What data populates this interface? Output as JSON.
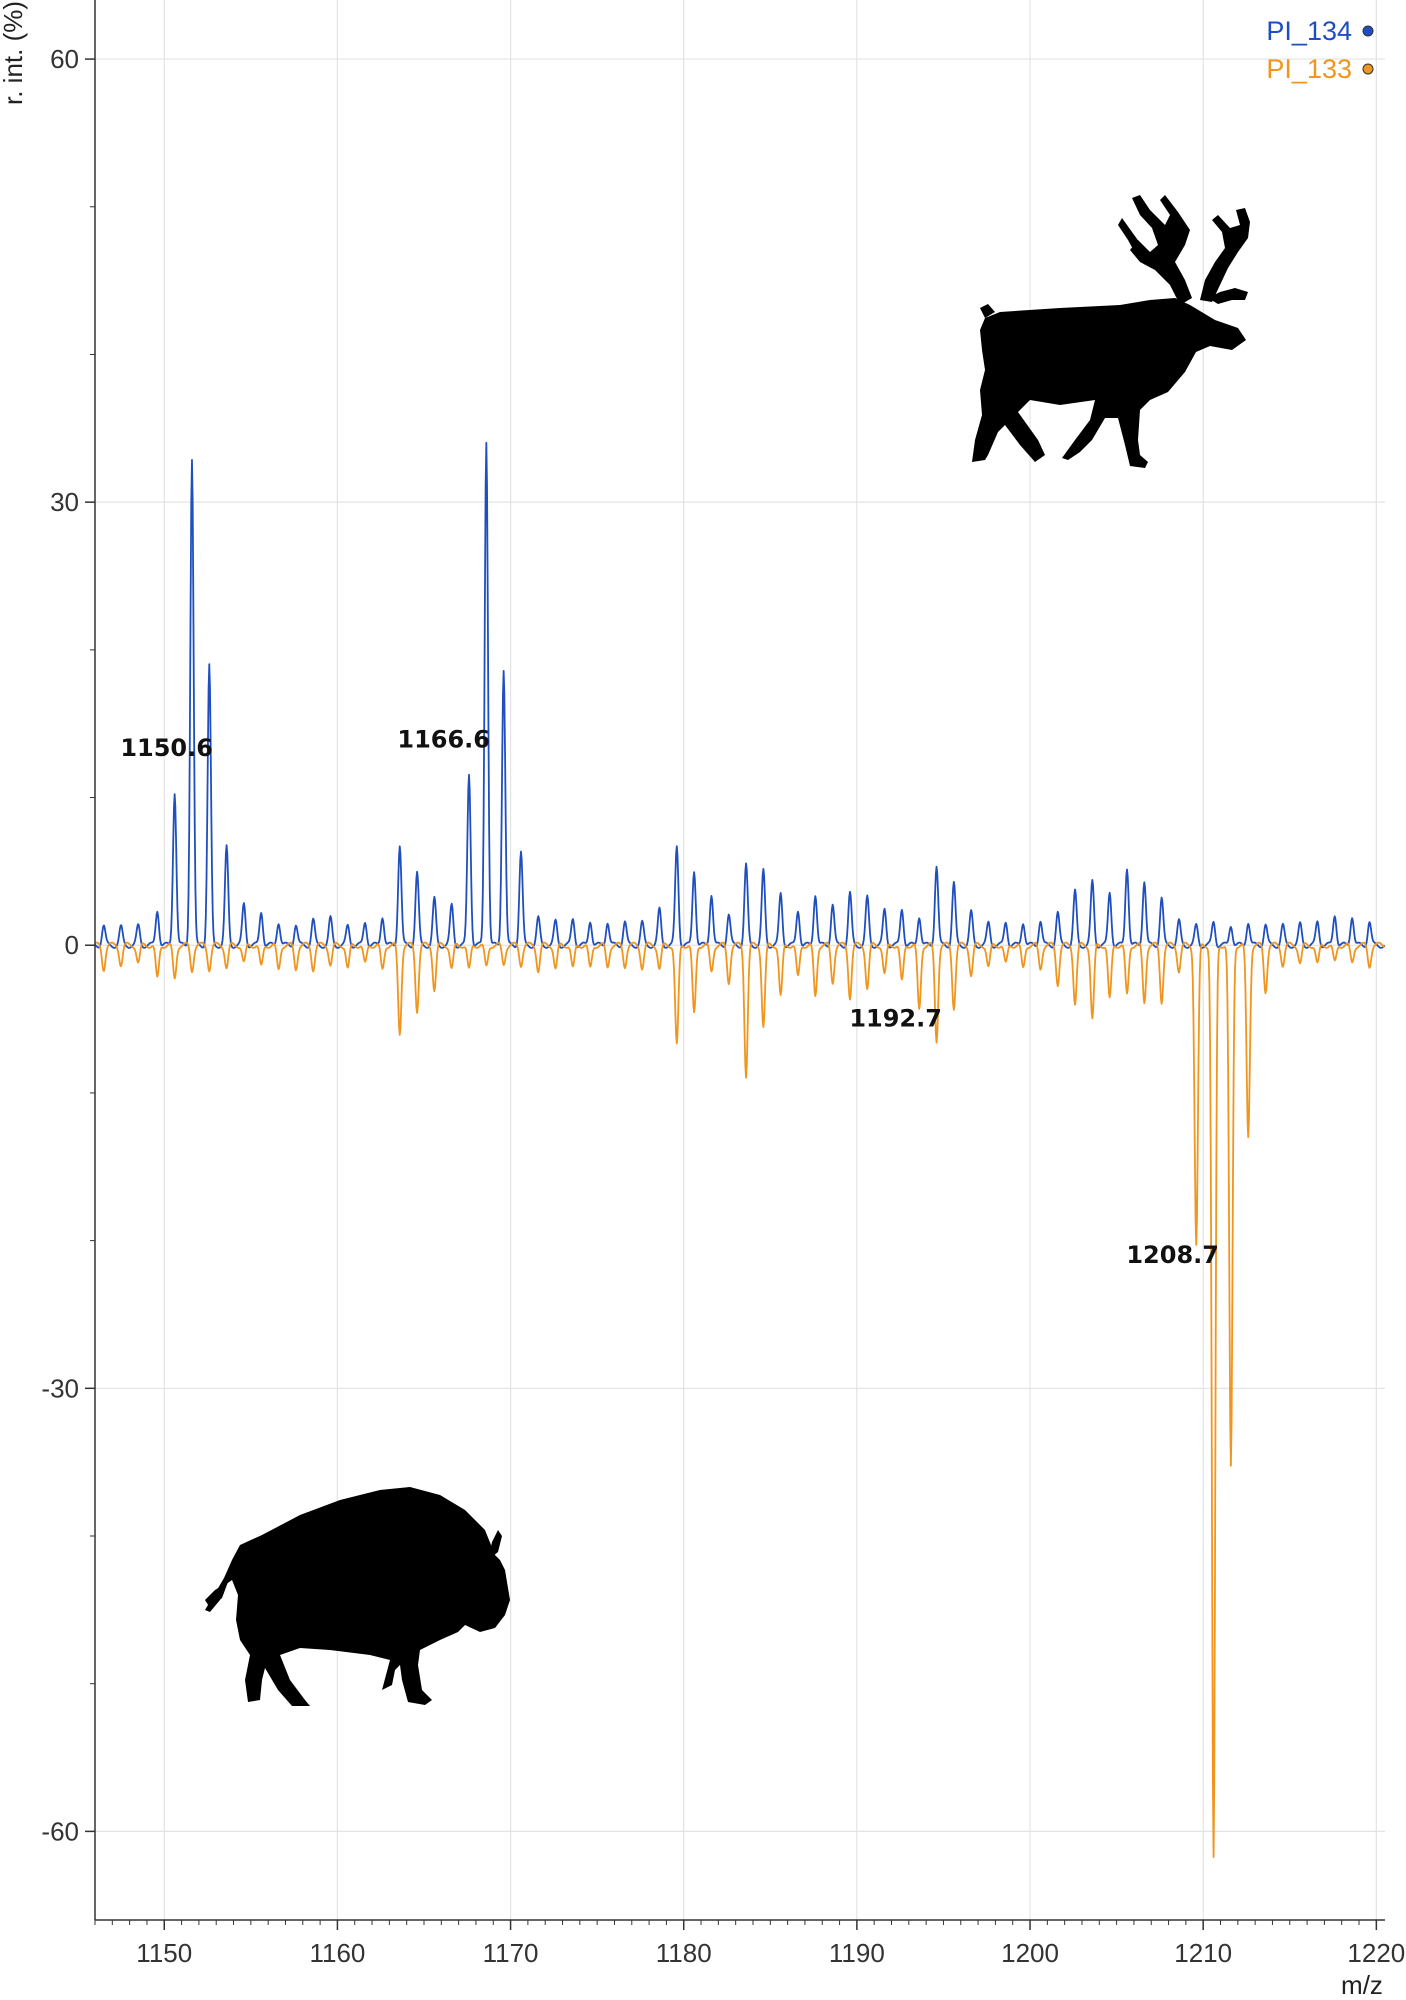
{
  "chart_data": {
    "type": "line",
    "xlabel": "m/z",
    "ylabel": "r. int. (%)",
    "xlim": [
      1146.0,
      1220.5
    ],
    "ylim": [
      -66.0,
      64.0
    ],
    "xticks": [
      1150,
      1160,
      1170,
      1180,
      1190,
      1200,
      1210,
      1220
    ],
    "yticks": [
      60,
      30,
      0,
      -30,
      -60
    ],
    "grid": true,
    "legend_position": "top-right",
    "series": [
      {
        "name": "PI_134",
        "color": "#1f4fbf",
        "direction": "up",
        "peaks": [
          {
            "x": 1146.5,
            "y": 1.3
          },
          {
            "x": 1147.5,
            "y": 1.2
          },
          {
            "x": 1148.5,
            "y": 1.3
          },
          {
            "x": 1149.6,
            "y": 2.4
          },
          {
            "x": 1150.6,
            "y": 10.4
          },
          {
            "x": 1151.6,
            "y": 32.9
          },
          {
            "x": 1152.6,
            "y": 18.9
          },
          {
            "x": 1153.6,
            "y": 6.6
          },
          {
            "x": 1154.6,
            "y": 2.8
          },
          {
            "x": 1155.6,
            "y": 2.3
          },
          {
            "x": 1156.6,
            "y": 1.6
          },
          {
            "x": 1157.6,
            "y": 1.4
          },
          {
            "x": 1158.6,
            "y": 1.7
          },
          {
            "x": 1159.6,
            "y": 1.8
          },
          {
            "x": 1160.6,
            "y": 1.3
          },
          {
            "x": 1161.6,
            "y": 1.6
          },
          {
            "x": 1162.6,
            "y": 2.0
          },
          {
            "x": 1163.6,
            "y": 6.8
          },
          {
            "x": 1164.6,
            "y": 4.9
          },
          {
            "x": 1165.6,
            "y": 3.1
          },
          {
            "x": 1166.6,
            "y": 2.7
          },
          {
            "x": 1167.6,
            "y": 11.6
          },
          {
            "x": 1168.6,
            "y": 34.2
          },
          {
            "x": 1169.6,
            "y": 18.7
          },
          {
            "x": 1170.6,
            "y": 6.3
          },
          {
            "x": 1171.6,
            "y": 1.8
          },
          {
            "x": 1172.6,
            "y": 1.6
          },
          {
            "x": 1173.6,
            "y": 1.8
          },
          {
            "x": 1174.6,
            "y": 1.7
          },
          {
            "x": 1175.6,
            "y": 1.6
          },
          {
            "x": 1176.6,
            "y": 1.6
          },
          {
            "x": 1177.6,
            "y": 1.5
          },
          {
            "x": 1178.6,
            "y": 2.4
          },
          {
            "x": 1179.6,
            "y": 6.7
          },
          {
            "x": 1180.6,
            "y": 5.1
          },
          {
            "x": 1181.6,
            "y": 3.5
          },
          {
            "x": 1182.6,
            "y": 2.1
          },
          {
            "x": 1183.6,
            "y": 5.4
          },
          {
            "x": 1184.6,
            "y": 5.0
          },
          {
            "x": 1185.6,
            "y": 3.5
          },
          {
            "x": 1186.6,
            "y": 2.4
          },
          {
            "x": 1187.6,
            "y": 3.5
          },
          {
            "x": 1188.6,
            "y": 2.8
          },
          {
            "x": 1189.6,
            "y": 3.5
          },
          {
            "x": 1190.6,
            "y": 3.2
          },
          {
            "x": 1191.6,
            "y": 2.4
          },
          {
            "x": 1192.6,
            "y": 2.5
          },
          {
            "x": 1193.6,
            "y": 2.0
          },
          {
            "x": 1194.6,
            "y": 5.4
          },
          {
            "x": 1195.6,
            "y": 4.2
          },
          {
            "x": 1196.6,
            "y": 2.2
          },
          {
            "x": 1197.6,
            "y": 1.5
          },
          {
            "x": 1198.6,
            "y": 1.6
          },
          {
            "x": 1199.6,
            "y": 1.6
          },
          {
            "x": 1200.6,
            "y": 1.7
          },
          {
            "x": 1201.6,
            "y": 2.2
          },
          {
            "x": 1202.6,
            "y": 3.6
          },
          {
            "x": 1203.6,
            "y": 4.3
          },
          {
            "x": 1204.6,
            "y": 3.6
          },
          {
            "x": 1205.6,
            "y": 5.3
          },
          {
            "x": 1206.6,
            "y": 4.4
          },
          {
            "x": 1207.6,
            "y": 3.2
          },
          {
            "x": 1208.6,
            "y": 1.6
          },
          {
            "x": 1209.6,
            "y": 1.3
          },
          {
            "x": 1210.6,
            "y": 1.6
          },
          {
            "x": 1211.6,
            "y": 1.4
          },
          {
            "x": 1212.6,
            "y": 1.6
          },
          {
            "x": 1213.6,
            "y": 1.4
          },
          {
            "x": 1214.6,
            "y": 1.3
          },
          {
            "x": 1215.6,
            "y": 1.4
          },
          {
            "x": 1216.6,
            "y": 1.6
          },
          {
            "x": 1217.6,
            "y": 2.1
          },
          {
            "x": 1218.6,
            "y": 2.0
          },
          {
            "x": 1219.6,
            "y": 1.6
          }
        ]
      },
      {
        "name": "PI_133",
        "color": "#f0951e",
        "direction": "down",
        "peaks": [
          {
            "x": 1146.5,
            "y": 1.6
          },
          {
            "x": 1147.5,
            "y": 1.3
          },
          {
            "x": 1148.5,
            "y": 1.2
          },
          {
            "x": 1149.6,
            "y": 2.3
          },
          {
            "x": 1150.6,
            "y": 2.3
          },
          {
            "x": 1151.6,
            "y": 1.7
          },
          {
            "x": 1152.6,
            "y": 1.6
          },
          {
            "x": 1153.6,
            "y": 1.5
          },
          {
            "x": 1154.6,
            "y": 1.2
          },
          {
            "x": 1155.6,
            "y": 1.5
          },
          {
            "x": 1156.6,
            "y": 1.7
          },
          {
            "x": 1157.6,
            "y": 1.6
          },
          {
            "x": 1158.6,
            "y": 1.6
          },
          {
            "x": 1159.6,
            "y": 1.3
          },
          {
            "x": 1160.6,
            "y": 1.6
          },
          {
            "x": 1161.6,
            "y": 1.3
          },
          {
            "x": 1162.6,
            "y": 1.7
          },
          {
            "x": 1163.6,
            "y": 6.0
          },
          {
            "x": 1164.6,
            "y": 4.4
          },
          {
            "x": 1165.6,
            "y": 3.0
          },
          {
            "x": 1166.6,
            "y": 1.6
          },
          {
            "x": 1167.6,
            "y": 1.7
          },
          {
            "x": 1168.6,
            "y": 1.5
          },
          {
            "x": 1169.6,
            "y": 1.3
          },
          {
            "x": 1170.6,
            "y": 1.3
          },
          {
            "x": 1171.6,
            "y": 1.7
          },
          {
            "x": 1172.6,
            "y": 1.6
          },
          {
            "x": 1173.6,
            "y": 1.6
          },
          {
            "x": 1174.6,
            "y": 1.6
          },
          {
            "x": 1175.6,
            "y": 1.5
          },
          {
            "x": 1176.6,
            "y": 1.4
          },
          {
            "x": 1177.6,
            "y": 1.5
          },
          {
            "x": 1178.6,
            "y": 1.6
          },
          {
            "x": 1179.6,
            "y": 6.8
          },
          {
            "x": 1180.6,
            "y": 4.7
          },
          {
            "x": 1181.6,
            "y": 1.8
          },
          {
            "x": 1182.6,
            "y": 2.5
          },
          {
            "x": 1183.6,
            "y": 8.8
          },
          {
            "x": 1184.6,
            "y": 5.5
          },
          {
            "x": 1185.6,
            "y": 3.5
          },
          {
            "x": 1186.6,
            "y": 2.2
          },
          {
            "x": 1187.6,
            "y": 3.5
          },
          {
            "x": 1188.6,
            "y": 2.5
          },
          {
            "x": 1189.6,
            "y": 3.5
          },
          {
            "x": 1190.6,
            "y": 2.9
          },
          {
            "x": 1191.6,
            "y": 2.0
          },
          {
            "x": 1192.6,
            "y": 2.5
          },
          {
            "x": 1193.6,
            "y": 4.4
          },
          {
            "x": 1194.6,
            "y": 6.5
          },
          {
            "x": 1195.6,
            "y": 4.2
          },
          {
            "x": 1196.6,
            "y": 2.0
          },
          {
            "x": 1197.6,
            "y": 1.5
          },
          {
            "x": 1198.6,
            "y": 1.3
          },
          {
            "x": 1199.6,
            "y": 1.6
          },
          {
            "x": 1200.6,
            "y": 1.6
          },
          {
            "x": 1201.6,
            "y": 2.6
          },
          {
            "x": 1202.6,
            "y": 3.9
          },
          {
            "x": 1203.6,
            "y": 5.0
          },
          {
            "x": 1204.6,
            "y": 3.7
          },
          {
            "x": 1205.6,
            "y": 3.4
          },
          {
            "x": 1206.6,
            "y": 3.9
          },
          {
            "x": 1207.6,
            "y": 3.8
          },
          {
            "x": 1208.6,
            "y": 1.7
          },
          {
            "x": 1209.6,
            "y": 20.3
          },
          {
            "x": 1210.6,
            "y": 61.9
          },
          {
            "x": 1211.6,
            "y": 35.4
          },
          {
            "x": 1212.6,
            "y": 13.0
          },
          {
            "x": 1213.6,
            "y": 3.1
          },
          {
            "x": 1214.6,
            "y": 1.3
          },
          {
            "x": 1215.6,
            "y": 1.2
          },
          {
            "x": 1216.6,
            "y": 1.3
          },
          {
            "x": 1217.6,
            "y": 1.2
          },
          {
            "x": 1218.6,
            "y": 1.2
          },
          {
            "x": 1219.6,
            "y": 1.4
          }
        ]
      }
    ],
    "annotations": [
      {
        "text": "1150.6",
        "x": 1150.6,
        "y": 12.8
      },
      {
        "text": "1166.6",
        "x": 1166.6,
        "y": 13.4
      },
      {
        "text": "1192.7",
        "x": 1192.7,
        "y": -5.5
      },
      {
        "text": "1208.7",
        "x": 1208.7,
        "y": -21.5
      }
    ]
  },
  "illustrations": {
    "upper_icon": "reindeer-silhouette",
    "lower_icon": "bison-silhouette",
    "color": "#000000"
  }
}
